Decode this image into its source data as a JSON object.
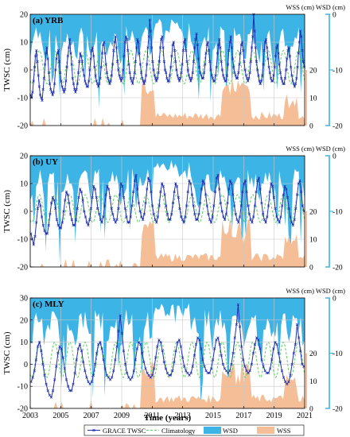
{
  "figure": {
    "xlabel": "Time (years)",
    "x_ticks": [
      "2003",
      "2005",
      "2007",
      "2009",
      "2011",
      "2013",
      "2015",
      "2017",
      "2019",
      "2021"
    ],
    "right_axis_header": "WSS (cm) WSD (cm)",
    "legend": [
      "GRACE TWSC",
      "Climatology",
      "WSD",
      "WSS"
    ],
    "colors": {
      "grace": "#1f2fb0",
      "climatology": "#5fd35f",
      "wsd": "#3cb4e6",
      "wss": "#f5be96",
      "right_axis": "#3cb4e6"
    }
  },
  "chart_data": [
    {
      "type": "line",
      "title": "(a) YRB",
      "ylabel": "TWSC (cm)",
      "xlim": [
        2003,
        2021
      ],
      "ylim": [
        -20,
        20
      ],
      "y_ticks": [
        "20",
        "10",
        "0",
        "-10",
        "-20"
      ],
      "wss_ticks": [
        "20",
        "10",
        "0"
      ],
      "wsd_ticks": [
        "0",
        "-10",
        "-20"
      ],
      "grid": true,
      "series": [
        {
          "name": "GRACE TWSC",
          "values": [
            -9,
            -10,
            -8,
            -4,
            1,
            5,
            7,
            3,
            -2,
            -6,
            -9,
            -10,
            -11,
            -7,
            -3,
            2,
            6,
            8,
            4,
            -1,
            -5,
            -7,
            -8,
            -9,
            -8,
            -5,
            0,
            4,
            6,
            7,
            3,
            -1,
            -4,
            -6,
            -7,
            -8,
            -7,
            -4,
            1,
            5,
            8,
            11,
            6,
            2,
            -3,
            -5,
            -7,
            -8,
            -7,
            -5,
            -1,
            3,
            6,
            5,
            3,
            0,
            -2,
            -4,
            -5,
            -6,
            -6,
            -4,
            0,
            4,
            7,
            8,
            5,
            1,
            -2,
            -4,
            -5,
            -6,
            -5,
            -3,
            1,
            6,
            9,
            10,
            6,
            2,
            -1,
            -3,
            -4,
            -5,
            -4,
            -2,
            2,
            7,
            10,
            12,
            8,
            3,
            0,
            -2,
            -3,
            -4,
            -3,
            0,
            5,
            10,
            12,
            11,
            7,
            2,
            -1,
            -3,
            -4,
            -5,
            -3,
            -1,
            3,
            8,
            11,
            10,
            6,
            2,
            -1,
            -3,
            -4,
            -5,
            -4,
            -2,
            2,
            8,
            12,
            18,
            14,
            8,
            3,
            0,
            -2,
            -3,
            -4,
            -3,
            -1,
            3,
            8,
            11,
            12,
            8,
            3,
            0,
            -1,
            -3,
            -4,
            -4,
            -2,
            1,
            5,
            9,
            10,
            7,
            3,
            0,
            -2,
            -3,
            -4,
            -3,
            -1,
            2,
            7,
            10,
            11,
            7,
            3,
            0,
            -2,
            -3,
            -4,
            -3,
            -1,
            3,
            8,
            11,
            13,
            9,
            4,
            1,
            -1,
            -2,
            -3,
            -3,
            -1,
            2,
            6,
            9,
            10,
            7,
            3,
            0,
            -2,
            -3,
            -4,
            -4,
            -2,
            1,
            6,
            9,
            11,
            8,
            3,
            0,
            -2,
            -3,
            -4,
            -4,
            -2,
            2,
            7,
            10,
            12,
            8,
            4,
            1,
            -1,
            -2,
            -3,
            -3,
            -1,
            2,
            6,
            9,
            10,
            7,
            3,
            0,
            -2,
            -3,
            -4,
            -3,
            -1,
            3,
            8,
            12,
            20,
            14,
            8,
            3,
            0,
            -2,
            -4,
            -5,
            -4,
            -2,
            2,
            7,
            10,
            11,
            8,
            4,
            1,
            -1,
            -3,
            -4,
            -4,
            -2,
            1,
            5,
            8,
            9,
            6,
            2,
            -1,
            -3,
            -4,
            -5,
            -5,
            -3,
            0,
            4,
            7,
            8,
            5,
            1,
            -2,
            -4,
            -5,
            -6,
            -5,
            -3,
            1,
            6,
            10,
            14,
            12,
            7,
            3,
            1
          ]
        },
        {
          "name": "Climatology",
          "amplitude": 6,
          "offset": 1
        },
        {
          "name": "WSD",
          "range": [
            0,
            -20
          ]
        },
        {
          "name": "WSS",
          "range": [
            0,
            20
          ]
        }
      ]
    },
    {
      "type": "line",
      "title": "(b) UY",
      "ylabel": "TWSC (cm)",
      "xlim": [
        2003,
        2021
      ],
      "ylim": [
        -20,
        20
      ],
      "y_ticks": [
        "20",
        "10",
        "0",
        "-10",
        "-20"
      ],
      "wss_ticks": [
        "20",
        "10",
        "0"
      ],
      "wsd_ticks": [
        "0",
        "-10",
        "-20"
      ],
      "grid": true,
      "series": [
        {
          "name": "GRACE TWSC",
          "values": [
            -8,
            -10,
            -12,
            -9,
            -4,
            1,
            4,
            2,
            -2,
            -5,
            -7,
            -8,
            -8,
            -5,
            -1,
            3,
            5,
            4,
            1,
            -3,
            -5,
            -6,
            -6,
            -4,
            0,
            4,
            7,
            6,
            3,
            -1,
            -3,
            -5,
            -5,
            -3,
            1,
            5,
            8,
            7,
            4,
            0,
            -2,
            -4,
            -5,
            -3,
            1,
            5,
            9,
            8,
            5,
            1,
            -1,
            -3,
            -4,
            -2,
            2,
            6,
            9,
            8,
            5,
            1,
            -1,
            -3,
            -4,
            -3,
            1,
            6,
            10,
            9,
            5,
            1,
            -2,
            -4,
            -4,
            -2,
            2,
            7,
            11,
            13,
            8,
            3,
            0,
            -2,
            -3,
            -1,
            3,
            8,
            12,
            11,
            7,
            2,
            -1,
            -3,
            -4,
            -2,
            2,
            7,
            10,
            9,
            6,
            2,
            -1,
            -3,
            -3,
            -1,
            3,
            7,
            10,
            9,
            5,
            1,
            -2,
            -3,
            -4,
            -2,
            2,
            7,
            11,
            10,
            6,
            2,
            -1,
            -3,
            -3,
            -1,
            3,
            8,
            11,
            10,
            6,
            2,
            -1,
            -3,
            -4,
            -2,
            2,
            7,
            12,
            13,
            8,
            3,
            0,
            -2,
            -3,
            -1,
            3,
            8,
            11,
            10,
            6,
            2,
            -1,
            -3,
            -4,
            -2,
            2,
            7,
            10,
            11,
            7,
            2,
            -1,
            -3,
            -4,
            -2,
            2,
            7,
            11,
            12,
            8,
            3,
            -1,
            -3,
            -4,
            -2,
            2,
            7,
            10,
            9,
            5,
            1,
            -2,
            -3,
            -4,
            -2,
            2,
            6,
            9,
            8,
            5,
            1,
            -2,
            -4,
            -5,
            -3,
            1,
            6,
            10,
            11,
            7,
            2,
            0
          ]
        },
        {
          "name": "Climatology",
          "amplitude": 5,
          "offset": 1
        },
        {
          "name": "WSD",
          "range": [
            0,
            -20
          ]
        },
        {
          "name": "WSS",
          "range": [
            0,
            20
          ]
        }
      ]
    },
    {
      "type": "line",
      "title": "(c) MLY",
      "ylabel": "TWSC (cm)",
      "xlim": [
        2003,
        2021
      ],
      "ylim": [
        -20,
        30
      ],
      "y_ticks": [
        "30",
        "20",
        "10",
        "0",
        "-10",
        "-20"
      ],
      "wss_ticks": [
        "20",
        "10",
        "0"
      ],
      "wsd_ticks": [
        "0",
        "-10",
        "-20"
      ],
      "grid": true,
      "series": [
        {
          "name": "GRACE TWSC",
          "values": [
            -8,
            -6,
            -3,
            2,
            8,
            10,
            6,
            0,
            -5,
            -9,
            -12,
            -14,
            -15,
            -12,
            -7,
            -1,
            5,
            8,
            7,
            3,
            -2,
            -7,
            -10,
            -12,
            -12,
            -9,
            -4,
            2,
            7,
            9,
            6,
            1,
            -3,
            -6,
            -8,
            -9,
            -8,
            -5,
            0,
            5,
            9,
            10,
            7,
            2,
            -2,
            -5,
            -6,
            -7,
            -6,
            -3,
            2,
            8,
            15,
            22,
            14,
            6,
            0,
            -4,
            -6,
            -7,
            -6,
            -3,
            2,
            7,
            10,
            9,
            5,
            1,
            -2,
            -4,
            -5,
            -6,
            -5,
            -2,
            3,
            8,
            11,
            10,
            6,
            1,
            -2,
            -4,
            -5,
            -5,
            -3,
            1,
            6,
            10,
            11,
            8,
            3,
            -1,
            -3,
            -4,
            -5,
            -4,
            -1,
            4,
            9,
            12,
            11,
            7,
            2,
            -1,
            -3,
            -4,
            -4,
            -2,
            2,
            7,
            11,
            12,
            9,
            4,
            0,
            -2,
            -3,
            -4,
            -3,
            0,
            5,
            12,
            18,
            27,
            17,
            8,
            2,
            -1,
            -3,
            -4,
            -3,
            0,
            5,
            9,
            12,
            11,
            7,
            2,
            -1,
            -3,
            -4,
            -4,
            -2,
            2,
            7,
            10,
            9,
            5,
            1,
            -3,
            -6,
            -8,
            -9,
            -8,
            -5,
            0,
            5,
            9,
            18,
            12,
            6,
            0,
            -1
          ]
        },
        {
          "name": "Climatology",
          "amplitude": 8,
          "offset": 2
        },
        {
          "name": "WSD",
          "range": [
            0,
            -20
          ]
        },
        {
          "name": "WSS",
          "range": [
            0,
            20
          ]
        }
      ]
    }
  ]
}
